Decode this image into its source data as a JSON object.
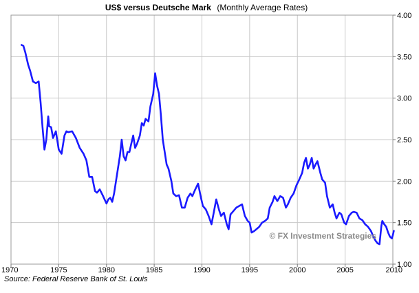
{
  "chart_data": {
    "type": "line",
    "title": "US$ versus Deutsche Mark",
    "subtitle": "(Monthly Average Rates)",
    "xlabel": "",
    "ylabel": "",
    "xlim": [
      1970,
      2010
    ],
    "ylim": [
      1.0,
      4.0
    ],
    "x_ticks": [
      "1970",
      "1975",
      "1980",
      "1985",
      "1990",
      "1995",
      "2000",
      "2005",
      "2010"
    ],
    "y_ticks": [
      "1.00",
      "1.50",
      "2.00",
      "2.50",
      "3.00",
      "3.50",
      "4.00"
    ],
    "grid": true,
    "series": [
      {
        "color": "#1a1aff",
        "points": [
          [
            1971.1,
            3.64
          ],
          [
            1971.3,
            3.63
          ],
          [
            1971.5,
            3.55
          ],
          [
            1971.8,
            3.4
          ],
          [
            1972.0,
            3.33
          ],
          [
            1972.3,
            3.2
          ],
          [
            1972.6,
            3.18
          ],
          [
            1972.9,
            3.2
          ],
          [
            1973.1,
            2.95
          ],
          [
            1973.3,
            2.65
          ],
          [
            1973.5,
            2.38
          ],
          [
            1973.7,
            2.5
          ],
          [
            1973.9,
            2.78
          ],
          [
            1974.0,
            2.66
          ],
          [
            1974.2,
            2.65
          ],
          [
            1974.4,
            2.52
          ],
          [
            1974.7,
            2.6
          ],
          [
            1975.0,
            2.38
          ],
          [
            1975.3,
            2.33
          ],
          [
            1975.6,
            2.55
          ],
          [
            1975.8,
            2.6
          ],
          [
            1976.0,
            2.59
          ],
          [
            1976.4,
            2.6
          ],
          [
            1976.8,
            2.52
          ],
          [
            1977.2,
            2.4
          ],
          [
            1977.6,
            2.33
          ],
          [
            1977.9,
            2.25
          ],
          [
            1978.2,
            2.05
          ],
          [
            1978.5,
            2.05
          ],
          [
            1978.8,
            1.88
          ],
          [
            1979.0,
            1.86
          ],
          [
            1979.3,
            1.9
          ],
          [
            1979.6,
            1.83
          ],
          [
            1979.8,
            1.78
          ],
          [
            1980.0,
            1.73
          ],
          [
            1980.2,
            1.78
          ],
          [
            1980.4,
            1.8
          ],
          [
            1980.6,
            1.75
          ],
          [
            1980.8,
            1.85
          ],
          [
            1981.0,
            2.0
          ],
          [
            1981.2,
            2.15
          ],
          [
            1981.4,
            2.3
          ],
          [
            1981.6,
            2.5
          ],
          [
            1981.8,
            2.3
          ],
          [
            1982.0,
            2.25
          ],
          [
            1982.2,
            2.35
          ],
          [
            1982.4,
            2.35
          ],
          [
            1982.6,
            2.45
          ],
          [
            1982.8,
            2.55
          ],
          [
            1983.0,
            2.4
          ],
          [
            1983.2,
            2.45
          ],
          [
            1983.5,
            2.55
          ],
          [
            1983.7,
            2.7
          ],
          [
            1983.9,
            2.67
          ],
          [
            1984.1,
            2.75
          ],
          [
            1984.4,
            2.72
          ],
          [
            1984.6,
            2.9
          ],
          [
            1984.9,
            3.05
          ],
          [
            1985.1,
            3.3
          ],
          [
            1985.3,
            3.15
          ],
          [
            1985.5,
            3.05
          ],
          [
            1985.7,
            2.8
          ],
          [
            1985.9,
            2.5
          ],
          [
            1986.1,
            2.35
          ],
          [
            1986.3,
            2.2
          ],
          [
            1986.5,
            2.15
          ],
          [
            1986.8,
            2.0
          ],
          [
            1987.0,
            1.85
          ],
          [
            1987.3,
            1.82
          ],
          [
            1987.6,
            1.83
          ],
          [
            1987.9,
            1.68
          ],
          [
            1988.2,
            1.68
          ],
          [
            1988.5,
            1.8
          ],
          [
            1988.8,
            1.85
          ],
          [
            1989.0,
            1.82
          ],
          [
            1989.3,
            1.9
          ],
          [
            1989.6,
            1.97
          ],
          [
            1989.9,
            1.8
          ],
          [
            1990.1,
            1.7
          ],
          [
            1990.4,
            1.66
          ],
          [
            1990.7,
            1.58
          ],
          [
            1991.0,
            1.48
          ],
          [
            1991.2,
            1.6
          ],
          [
            1991.5,
            1.78
          ],
          [
            1991.8,
            1.65
          ],
          [
            1992.0,
            1.58
          ],
          [
            1992.3,
            1.62
          ],
          [
            1992.6,
            1.48
          ],
          [
            1992.8,
            1.42
          ],
          [
            1993.0,
            1.6
          ],
          [
            1993.3,
            1.64
          ],
          [
            1993.6,
            1.68
          ],
          [
            1993.9,
            1.7
          ],
          [
            1994.2,
            1.72
          ],
          [
            1994.5,
            1.58
          ],
          [
            1994.8,
            1.52
          ],
          [
            1995.0,
            1.5
          ],
          [
            1995.2,
            1.38
          ],
          [
            1995.5,
            1.4
          ],
          [
            1995.8,
            1.43
          ],
          [
            1996.0,
            1.45
          ],
          [
            1996.3,
            1.5
          ],
          [
            1996.6,
            1.52
          ],
          [
            1996.9,
            1.55
          ],
          [
            1997.1,
            1.68
          ],
          [
            1997.4,
            1.75
          ],
          [
            1997.6,
            1.82
          ],
          [
            1997.9,
            1.76
          ],
          [
            1998.2,
            1.82
          ],
          [
            1998.5,
            1.8
          ],
          [
            1998.8,
            1.68
          ],
          [
            1999.0,
            1.72
          ],
          [
            1999.3,
            1.8
          ],
          [
            1999.6,
            1.85
          ],
          [
            1999.9,
            1.95
          ],
          [
            2000.2,
            2.02
          ],
          [
            2000.5,
            2.1
          ],
          [
            2000.7,
            2.22
          ],
          [
            2000.9,
            2.28
          ],
          [
            2001.1,
            2.15
          ],
          [
            2001.3,
            2.2
          ],
          [
            2001.5,
            2.28
          ],
          [
            2001.7,
            2.15
          ],
          [
            2001.9,
            2.2
          ],
          [
            2002.1,
            2.24
          ],
          [
            2002.4,
            2.1
          ],
          [
            2002.6,
            2.02
          ],
          [
            2002.9,
            1.98
          ],
          [
            2003.1,
            1.82
          ],
          [
            2003.4,
            1.68
          ],
          [
            2003.7,
            1.72
          ],
          [
            2003.9,
            1.62
          ],
          [
            2004.1,
            1.55
          ],
          [
            2004.4,
            1.62
          ],
          [
            2004.6,
            1.6
          ],
          [
            2004.9,
            1.5
          ],
          [
            2005.1,
            1.48
          ],
          [
            2005.4,
            1.58
          ],
          [
            2005.7,
            1.62
          ],
          [
            2005.9,
            1.63
          ],
          [
            2006.2,
            1.62
          ],
          [
            2006.5,
            1.55
          ],
          [
            2006.8,
            1.53
          ],
          [
            2007.1,
            1.48
          ],
          [
            2007.4,
            1.45
          ],
          [
            2007.7,
            1.4
          ],
          [
            2008.0,
            1.32
          ],
          [
            2008.2,
            1.28
          ],
          [
            2008.4,
            1.25
          ],
          [
            2008.6,
            1.24
          ],
          [
            2008.8,
            1.46
          ],
          [
            2008.9,
            1.52
          ],
          [
            2009.1,
            1.48
          ],
          [
            2009.3,
            1.45
          ],
          [
            2009.5,
            1.38
          ],
          [
            2009.7,
            1.33
          ],
          [
            2009.9,
            1.31
          ],
          [
            2010.0,
            1.35
          ],
          [
            2010.1,
            1.4
          ]
        ]
      }
    ],
    "annotations": {
      "watermark": "© FX Investment Strategies",
      "source": "Source: Federal Reserve Bank of St. Louis"
    }
  }
}
